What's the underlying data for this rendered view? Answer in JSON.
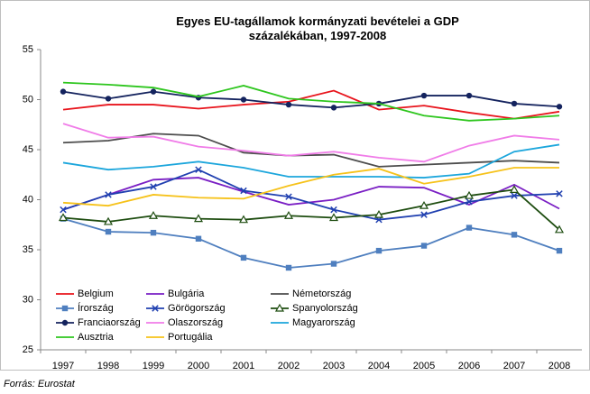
{
  "chart_data": {
    "type": "line",
    "title": "Egyes EU-tagállamok kormányzati bevételei a GDP százalékában, 1997-2008",
    "source": "Forrás: Eurostat",
    "categories": [
      "1997",
      "1998",
      "1999",
      "2000",
      "2001",
      "2002",
      "2003",
      "2004",
      "2005",
      "2006",
      "2007",
      "2008"
    ],
    "ylim": [
      25,
      55
    ],
    "yticks": [
      25,
      30,
      35,
      40,
      45,
      50,
      55
    ],
    "grid": false,
    "legend": "bottom-left",
    "series": [
      {
        "name": "Belgium",
        "color": "#e8141c",
        "marker": "none",
        "values": [
          49.0,
          49.5,
          49.5,
          49.1,
          49.5,
          49.8,
          50.9,
          49.0,
          49.4,
          48.7,
          48.1,
          48.8
        ]
      },
      {
        "name": "Bulgária",
        "color": "#7a1fc4",
        "marker": "none",
        "values": [
          39.0,
          40.5,
          42.0,
          42.2,
          40.8,
          39.5,
          40.0,
          41.3,
          41.2,
          39.5,
          41.5,
          39.1
        ]
      },
      {
        "name": "Németország",
        "color": "#4d4d4d",
        "marker": "none",
        "values": [
          45.7,
          45.9,
          46.6,
          46.4,
          44.7,
          44.4,
          44.5,
          43.3,
          43.5,
          43.7,
          43.9,
          43.7
        ]
      },
      {
        "name": "Írország",
        "color": "#4f7fbf",
        "marker": "square",
        "values": [
          38.1,
          36.8,
          36.7,
          36.1,
          34.2,
          33.2,
          33.6,
          34.9,
          35.4,
          37.2,
          36.5,
          34.9
        ]
      },
      {
        "name": "Görögország",
        "color": "#2040b0",
        "marker": "x",
        "values": [
          39.0,
          40.5,
          41.3,
          43.0,
          40.9,
          40.3,
          39.0,
          38.0,
          38.5,
          39.8,
          40.4,
          40.6
        ]
      },
      {
        "name": "Spanyolország",
        "color": "#1e4d10",
        "marker": "triangle",
        "values": [
          38.2,
          37.8,
          38.4,
          38.1,
          38.0,
          38.4,
          38.2,
          38.5,
          39.4,
          40.4,
          41.0,
          37.0
        ]
      },
      {
        "name": "Franciaország",
        "color": "#14235e",
        "marker": "circle",
        "values": [
          50.8,
          50.1,
          50.8,
          50.2,
          50.0,
          49.5,
          49.2,
          49.6,
          50.4,
          50.4,
          49.6,
          49.3
        ]
      },
      {
        "name": "Olaszország",
        "color": "#f07ce8",
        "marker": "none",
        "values": [
          47.6,
          46.2,
          46.3,
          45.3,
          44.9,
          44.4,
          44.8,
          44.2,
          43.8,
          45.4,
          46.4,
          46.0
        ]
      },
      {
        "name": "Magyarország",
        "color": "#1ca6dc",
        "marker": "none",
        "values": [
          43.7,
          43.0,
          43.3,
          43.8,
          43.2,
          42.3,
          42.3,
          42.3,
          42.2,
          42.6,
          44.8,
          45.5
        ]
      },
      {
        "name": "Ausztria",
        "color": "#2ec61e",
        "marker": "none",
        "values": [
          51.7,
          51.5,
          51.2,
          50.3,
          51.4,
          50.1,
          49.8,
          49.6,
          48.4,
          47.9,
          48.1,
          48.4
        ]
      },
      {
        "name": "Portugália",
        "color": "#f6c21a",
        "marker": "none",
        "values": [
          39.7,
          39.4,
          40.5,
          40.2,
          40.1,
          41.4,
          42.5,
          43.1,
          41.6,
          42.3,
          43.2,
          43.2
        ]
      }
    ]
  }
}
